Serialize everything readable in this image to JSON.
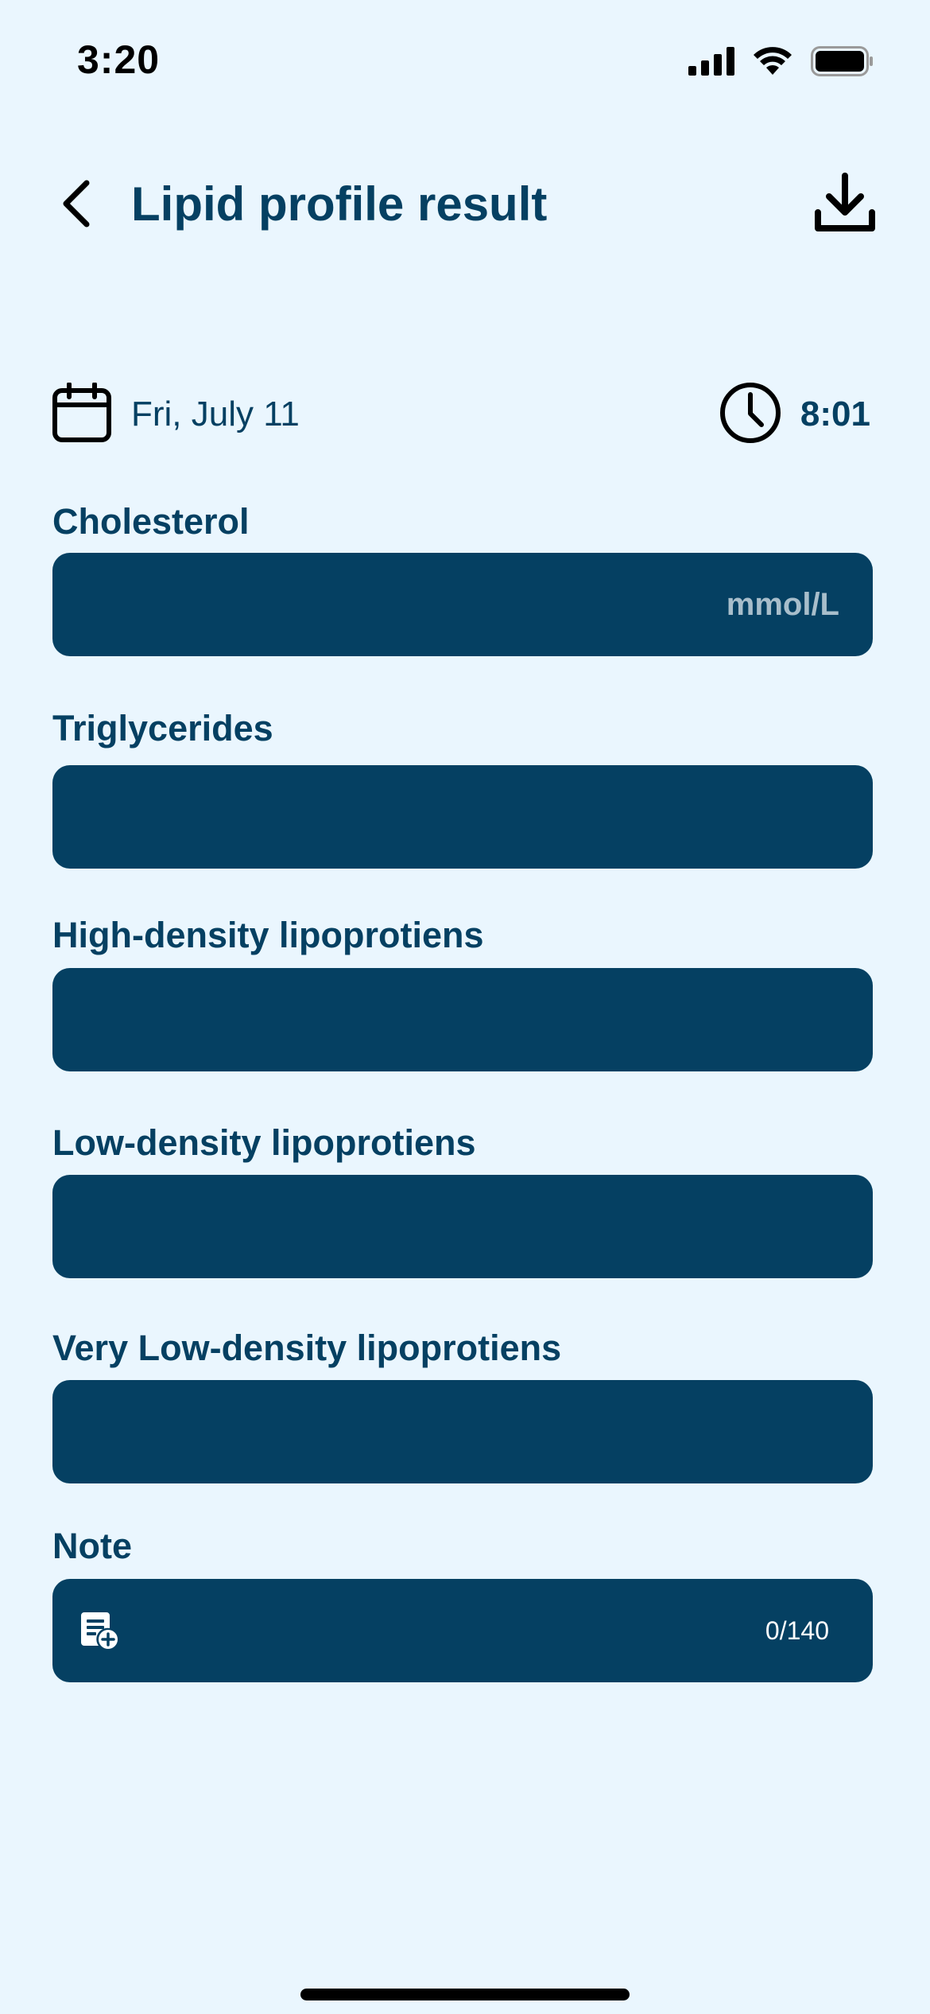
{
  "status_bar": {
    "time": "3:20",
    "icons": [
      "signal-icon",
      "wifi-icon",
      "battery-icon"
    ]
  },
  "header": {
    "title": "Lipid profile result",
    "back_icon": "chevron-left-icon",
    "download_icon": "download-icon"
  },
  "datetime": {
    "date": "Fri, July 11",
    "time": "8:01",
    "date_icon": "calendar-icon",
    "time_icon": "clock-icon"
  },
  "fields": [
    {
      "label": "Cholesterol",
      "value": "",
      "unit": "mmol/L"
    },
    {
      "label": "Triglycerides",
      "value": "",
      "unit": ""
    },
    {
      "label": "High-density lipoprotiens",
      "value": "",
      "unit": ""
    },
    {
      "label": "Low-density lipoprotiens",
      "value": "",
      "unit": ""
    },
    {
      "label": "Very Low-density lipoprotiens",
      "value": "",
      "unit": ""
    }
  ],
  "note": {
    "label": "Note",
    "value": "",
    "counter": "0/140",
    "icon": "note-add-icon"
  },
  "colors": {
    "background": "#EAF6FE",
    "primary": "#054062",
    "unit_text": "#A8BECB"
  }
}
